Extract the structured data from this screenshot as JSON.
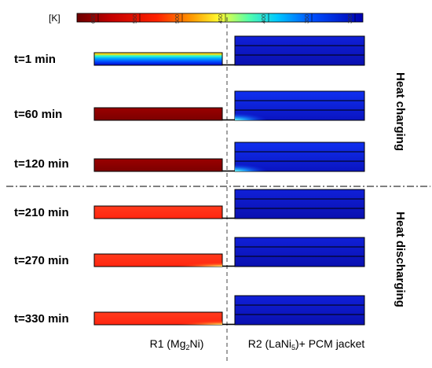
{
  "colorbar": {
    "unit": "[K]",
    "ticks": [
      "600",
      "550",
      "500",
      "450",
      "400",
      "350",
      "300"
    ],
    "colors": [
      "#6b0000",
      "#c40000",
      "#ff2200",
      "#ff9900",
      "#ffff33",
      "#55ffaa",
      "#00c8ff",
      "#0050ff",
      "#0000b0"
    ]
  },
  "snapshots": [
    {
      "label": "t=1 min",
      "r1_state": "profile-hot-core",
      "r2_state": "cold"
    },
    {
      "label": "t=60 min",
      "r1_state": "hot-uniform",
      "r2_state": "warm-corner"
    },
    {
      "label": "t=120 min",
      "r1_state": "hot-uniform",
      "r2_state": "warm-corner"
    },
    {
      "label": "t=210 min",
      "r1_state": "warm-uniform",
      "r2_state": "cold"
    },
    {
      "label": "t=270 min",
      "r1_state": "warm-cooling-corner",
      "r2_state": "cold"
    },
    {
      "label": "t=330 min",
      "r1_state": "warm-cooling-corner",
      "r2_state": "cold"
    }
  ],
  "side_labels": {
    "charging": "Heat charging",
    "discharging": "Heat discharging"
  },
  "bottom_labels": {
    "r1": "R1 (Mg",
    "r1_sub": "2",
    "r1_tail": "Ni)",
    "r2": "R2 (LaNi",
    "r2_sub": "5",
    "r2_tail": ")+ PCM jacket"
  },
  "colors": {
    "hot": "#8b0000",
    "warm": "#ff2a10",
    "cold": "#0a14c8",
    "outline": "#000000"
  }
}
